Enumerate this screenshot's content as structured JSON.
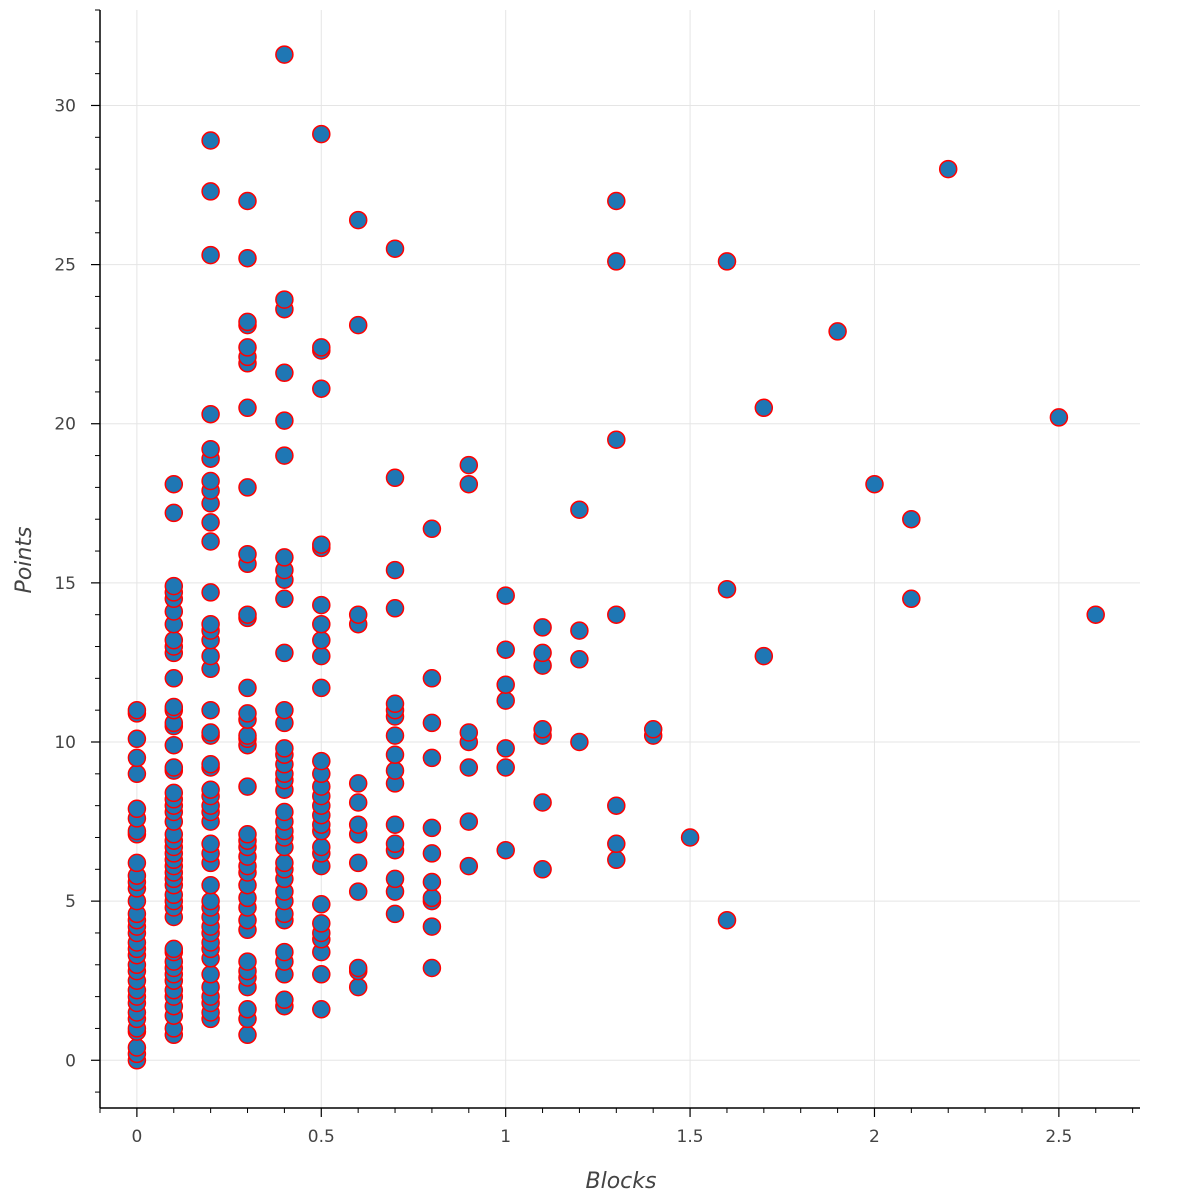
{
  "chart_data": {
    "type": "scatter",
    "xlabel": "Blocks",
    "ylabel": "Points",
    "xlim": [
      -0.1,
      2.72
    ],
    "ylim": [
      -1.5,
      33
    ],
    "x_ticks": [
      0,
      0.5,
      1,
      1.5,
      2,
      2.5
    ],
    "x_tick_labels": [
      "0",
      "0.5",
      "1",
      "1.5",
      "2",
      "2.5"
    ],
    "y_ticks": [
      0,
      5,
      10,
      15,
      20,
      25,
      30
    ],
    "y_tick_labels": [
      "0",
      "5",
      "10",
      "15",
      "20",
      "25",
      "30"
    ],
    "grid": true,
    "marker": {
      "fill": "#1f77b4",
      "stroke": "#ff0000",
      "shape": "circle"
    },
    "points": [
      [
        0,
        0
      ],
      [
        0,
        0.2
      ],
      [
        0,
        0.4
      ],
      [
        0,
        0.9
      ],
      [
        0,
        1.0
      ],
      [
        0,
        1.3
      ],
      [
        0,
        1.5
      ],
      [
        0,
        1.8
      ],
      [
        0,
        2.0
      ],
      [
        0,
        2.2
      ],
      [
        0,
        2.5
      ],
      [
        0,
        2.8
      ],
      [
        0,
        3.0
      ],
      [
        0,
        3.3
      ],
      [
        0,
        3.5
      ],
      [
        0,
        3.7
      ],
      [
        0,
        4.0
      ],
      [
        0,
        4.2
      ],
      [
        0,
        4.4
      ],
      [
        0,
        4.6
      ],
      [
        0,
        5.0
      ],
      [
        0,
        5.4
      ],
      [
        0,
        5.6
      ],
      [
        0,
        5.8
      ],
      [
        0,
        6.2
      ],
      [
        0,
        7.1
      ],
      [
        0,
        7.2
      ],
      [
        0,
        7.6
      ],
      [
        0,
        7.9
      ],
      [
        0,
        9.0
      ],
      [
        0,
        9.5
      ],
      [
        0,
        10.1
      ],
      [
        0,
        10.9
      ],
      [
        0,
        11.0
      ],
      [
        0.1,
        0.8
      ],
      [
        0.1,
        1.0
      ],
      [
        0.1,
        1.4
      ],
      [
        0.1,
        1.7
      ],
      [
        0.1,
        2.0
      ],
      [
        0.1,
        2.2
      ],
      [
        0.1,
        2.5
      ],
      [
        0.1,
        2.7
      ],
      [
        0.1,
        2.9
      ],
      [
        0.1,
        3.1
      ],
      [
        0.1,
        3.4
      ],
      [
        0.1,
        3.5
      ],
      [
        0.1,
        4.5
      ],
      [
        0.1,
        4.8
      ],
      [
        0.1,
        5.0
      ],
      [
        0.1,
        5.2
      ],
      [
        0.1,
        5.5
      ],
      [
        0.1,
        5.7
      ],
      [
        0.1,
        5.9
      ],
      [
        0.1,
        6.1
      ],
      [
        0.1,
        6.3
      ],
      [
        0.1,
        6.5
      ],
      [
        0.1,
        6.7
      ],
      [
        0.1,
        6.9
      ],
      [
        0.1,
        7.1
      ],
      [
        0.1,
        7.5
      ],
      [
        0.1,
        7.8
      ],
      [
        0.1,
        8.0
      ],
      [
        0.1,
        8.2
      ],
      [
        0.1,
        8.4
      ],
      [
        0.1,
        9.1
      ],
      [
        0.1,
        9.2
      ],
      [
        0.1,
        9.9
      ],
      [
        0.1,
        10.5
      ],
      [
        0.1,
        10.6
      ],
      [
        0.1,
        11.0
      ],
      [
        0.1,
        11.1
      ],
      [
        0.1,
        12.0
      ],
      [
        0.1,
        12.8
      ],
      [
        0.1,
        13.0
      ],
      [
        0.1,
        13.2
      ],
      [
        0.1,
        13.7
      ],
      [
        0.1,
        14.1
      ],
      [
        0.1,
        14.5
      ],
      [
        0.1,
        14.7
      ],
      [
        0.1,
        14.9
      ],
      [
        0.1,
        17.2
      ],
      [
        0.1,
        18.1
      ],
      [
        0.2,
        1.3
      ],
      [
        0.2,
        1.5
      ],
      [
        0.2,
        1.8
      ],
      [
        0.2,
        2.0
      ],
      [
        0.2,
        2.3
      ],
      [
        0.2,
        2.7
      ],
      [
        0.2,
        3.2
      ],
      [
        0.2,
        3.5
      ],
      [
        0.2,
        3.7
      ],
      [
        0.2,
        4.0
      ],
      [
        0.2,
        4.2
      ],
      [
        0.2,
        4.5
      ],
      [
        0.2,
        4.8
      ],
      [
        0.2,
        5.0
      ],
      [
        0.2,
        5.5
      ],
      [
        0.2,
        6.2
      ],
      [
        0.2,
        6.5
      ],
      [
        0.2,
        6.8
      ],
      [
        0.2,
        7.5
      ],
      [
        0.2,
        7.8
      ],
      [
        0.2,
        8.0
      ],
      [
        0.2,
        8.3
      ],
      [
        0.2,
        8.5
      ],
      [
        0.2,
        9.2
      ],
      [
        0.2,
        9.3
      ],
      [
        0.2,
        10.2
      ],
      [
        0.2,
        10.3
      ],
      [
        0.2,
        11.0
      ],
      [
        0.2,
        12.3
      ],
      [
        0.2,
        12.7
      ],
      [
        0.2,
        13.2
      ],
      [
        0.2,
        13.5
      ],
      [
        0.2,
        13.7
      ],
      [
        0.2,
        14.7
      ],
      [
        0.2,
        16.3
      ],
      [
        0.2,
        16.9
      ],
      [
        0.2,
        17.5
      ],
      [
        0.2,
        17.9
      ],
      [
        0.2,
        18.2
      ],
      [
        0.2,
        18.9
      ],
      [
        0.2,
        19.2
      ],
      [
        0.2,
        20.3
      ],
      [
        0.2,
        25.3
      ],
      [
        0.2,
        27.3
      ],
      [
        0.2,
        28.9
      ],
      [
        0.3,
        0.8
      ],
      [
        0.3,
        1.3
      ],
      [
        0.3,
        1.6
      ],
      [
        0.3,
        2.3
      ],
      [
        0.3,
        2.6
      ],
      [
        0.3,
        2.8
      ],
      [
        0.3,
        3.1
      ],
      [
        0.3,
        4.1
      ],
      [
        0.3,
        4.4
      ],
      [
        0.3,
        4.8
      ],
      [
        0.3,
        5.1
      ],
      [
        0.3,
        5.5
      ],
      [
        0.3,
        5.9
      ],
      [
        0.3,
        6.1
      ],
      [
        0.3,
        6.4
      ],
      [
        0.3,
        6.7
      ],
      [
        0.3,
        6.9
      ],
      [
        0.3,
        7.1
      ],
      [
        0.3,
        8.6
      ],
      [
        0.3,
        9.9
      ],
      [
        0.3,
        10.1
      ],
      [
        0.3,
        10.2
      ],
      [
        0.3,
        10.7
      ],
      [
        0.3,
        10.9
      ],
      [
        0.3,
        11.7
      ],
      [
        0.3,
        13.9
      ],
      [
        0.3,
        14.0
      ],
      [
        0.3,
        15.6
      ],
      [
        0.3,
        15.9
      ],
      [
        0.3,
        18.0
      ],
      [
        0.3,
        20.5
      ],
      [
        0.3,
        21.9
      ],
      [
        0.3,
        22.1
      ],
      [
        0.3,
        22.4
      ],
      [
        0.3,
        23.1
      ],
      [
        0.3,
        23.2
      ],
      [
        0.3,
        25.2
      ],
      [
        0.3,
        27.0
      ],
      [
        0.4,
        1.7
      ],
      [
        0.4,
        1.9
      ],
      [
        0.4,
        2.7
      ],
      [
        0.4,
        3.1
      ],
      [
        0.4,
        3.4
      ],
      [
        0.4,
        4.4
      ],
      [
        0.4,
        4.6
      ],
      [
        0.4,
        5.0
      ],
      [
        0.4,
        5.3
      ],
      [
        0.4,
        5.7
      ],
      [
        0.4,
        6.0
      ],
      [
        0.4,
        6.2
      ],
      [
        0.4,
        6.7
      ],
      [
        0.4,
        7.0
      ],
      [
        0.4,
        7.2
      ],
      [
        0.4,
        7.5
      ],
      [
        0.4,
        7.8
      ],
      [
        0.4,
        8.5
      ],
      [
        0.4,
        8.8
      ],
      [
        0.4,
        9.0
      ],
      [
        0.4,
        9.3
      ],
      [
        0.4,
        9.6
      ],
      [
        0.4,
        9.8
      ],
      [
        0.4,
        10.6
      ],
      [
        0.4,
        11.0
      ],
      [
        0.4,
        12.8
      ],
      [
        0.4,
        14.5
      ],
      [
        0.4,
        15.1
      ],
      [
        0.4,
        15.4
      ],
      [
        0.4,
        15.8
      ],
      [
        0.4,
        19.0
      ],
      [
        0.4,
        20.1
      ],
      [
        0.4,
        21.6
      ],
      [
        0.4,
        23.6
      ],
      [
        0.4,
        23.9
      ],
      [
        0.4,
        31.6
      ],
      [
        0.5,
        1.6
      ],
      [
        0.5,
        2.7
      ],
      [
        0.5,
        3.4
      ],
      [
        0.5,
        3.8
      ],
      [
        0.5,
        4.0
      ],
      [
        0.5,
        4.3
      ],
      [
        0.5,
        4.9
      ],
      [
        0.5,
        6.1
      ],
      [
        0.5,
        6.5
      ],
      [
        0.5,
        6.7
      ],
      [
        0.5,
        7.2
      ],
      [
        0.5,
        7.4
      ],
      [
        0.5,
        7.7
      ],
      [
        0.5,
        8.0
      ],
      [
        0.5,
        8.3
      ],
      [
        0.5,
        8.6
      ],
      [
        0.5,
        9.0
      ],
      [
        0.5,
        9.4
      ],
      [
        0.5,
        11.7
      ],
      [
        0.5,
        12.7
      ],
      [
        0.5,
        13.2
      ],
      [
        0.5,
        13.7
      ],
      [
        0.5,
        14.3
      ],
      [
        0.5,
        16.1
      ],
      [
        0.5,
        16.2
      ],
      [
        0.5,
        21.1
      ],
      [
        0.5,
        22.3
      ],
      [
        0.5,
        22.4
      ],
      [
        0.5,
        29.1
      ],
      [
        0.6,
        2.3
      ],
      [
        0.6,
        2.8
      ],
      [
        0.6,
        2.9
      ],
      [
        0.6,
        5.3
      ],
      [
        0.6,
        6.2
      ],
      [
        0.6,
        7.1
      ],
      [
        0.6,
        7.4
      ],
      [
        0.6,
        8.1
      ],
      [
        0.6,
        8.7
      ],
      [
        0.6,
        13.7
      ],
      [
        0.6,
        14.0
      ],
      [
        0.6,
        23.1
      ],
      [
        0.6,
        26.4
      ],
      [
        0.7,
        4.6
      ],
      [
        0.7,
        5.3
      ],
      [
        0.7,
        5.7
      ],
      [
        0.7,
        6.6
      ],
      [
        0.7,
        6.8
      ],
      [
        0.7,
        7.4
      ],
      [
        0.7,
        8.7
      ],
      [
        0.7,
        9.1
      ],
      [
        0.7,
        9.6
      ],
      [
        0.7,
        10.2
      ],
      [
        0.7,
        10.8
      ],
      [
        0.7,
        11.0
      ],
      [
        0.7,
        11.2
      ],
      [
        0.7,
        14.2
      ],
      [
        0.7,
        15.4
      ],
      [
        0.7,
        18.3
      ],
      [
        0.7,
        25.5
      ],
      [
        0.8,
        2.9
      ],
      [
        0.8,
        4.2
      ],
      [
        0.8,
        5.0
      ],
      [
        0.8,
        5.1
      ],
      [
        0.8,
        5.6
      ],
      [
        0.8,
        6.5
      ],
      [
        0.8,
        7.3
      ],
      [
        0.8,
        9.5
      ],
      [
        0.8,
        10.6
      ],
      [
        0.8,
        12.0
      ],
      [
        0.8,
        16.7
      ],
      [
        0.9,
        6.1
      ],
      [
        0.9,
        7.5
      ],
      [
        0.9,
        9.2
      ],
      [
        0.9,
        10.0
      ],
      [
        0.9,
        10.3
      ],
      [
        0.9,
        18.1
      ],
      [
        0.9,
        18.7
      ],
      [
        1.0,
        6.6
      ],
      [
        1.0,
        9.2
      ],
      [
        1.0,
        9.8
      ],
      [
        1.0,
        11.3
      ],
      [
        1.0,
        11.8
      ],
      [
        1.0,
        12.9
      ],
      [
        1.0,
        14.6
      ],
      [
        1.1,
        6.0
      ],
      [
        1.1,
        8.1
      ],
      [
        1.1,
        10.2
      ],
      [
        1.1,
        10.4
      ],
      [
        1.1,
        12.4
      ],
      [
        1.1,
        12.8
      ],
      [
        1.1,
        13.6
      ],
      [
        1.2,
        10.0
      ],
      [
        1.2,
        12.6
      ],
      [
        1.2,
        13.5
      ],
      [
        1.2,
        17.3
      ],
      [
        1.3,
        6.3
      ],
      [
        1.3,
        6.8
      ],
      [
        1.3,
        8.0
      ],
      [
        1.3,
        14.0
      ],
      [
        1.3,
        19.5
      ],
      [
        1.3,
        25.1
      ],
      [
        1.3,
        27.0
      ],
      [
        1.4,
        10.2
      ],
      [
        1.4,
        10.4
      ],
      [
        1.5,
        7.0
      ],
      [
        1.6,
        4.4
      ],
      [
        1.6,
        14.8
      ],
      [
        1.6,
        25.1
      ],
      [
        1.7,
        12.7
      ],
      [
        1.7,
        20.5
      ],
      [
        1.9,
        22.9
      ],
      [
        2.0,
        18.1
      ],
      [
        2.1,
        14.5
      ],
      [
        2.1,
        17.0
      ],
      [
        2.2,
        28.0
      ],
      [
        2.5,
        20.2
      ],
      [
        2.6,
        14.0
      ]
    ]
  }
}
